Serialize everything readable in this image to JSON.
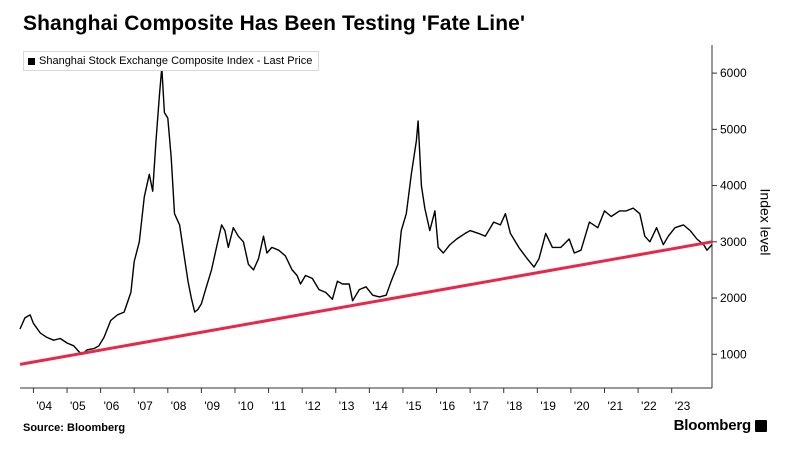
{
  "chart_data": {
    "type": "line",
    "title": "Shanghai Composite Has Been Testing 'Fate Line'",
    "ylabel": "Index level",
    "xlabel": "",
    "ylim": [
      400,
      6500
    ],
    "xlim": [
      2003.6,
      2024.2
    ],
    "y_ticks": [
      1000,
      2000,
      3000,
      4000,
      5000,
      6000
    ],
    "x_tick_labels": [
      "'04",
      "'05",
      "'06",
      "'07",
      "'08",
      "'09",
      "'10",
      "'11",
      "'12",
      "'13",
      "'14",
      "'15",
      "'16",
      "'17",
      "'18",
      "'19",
      "'20",
      "'21",
      "'22",
      "'23"
    ],
    "x_tick_years": [
      2004,
      2005,
      2006,
      2007,
      2008,
      2009,
      2010,
      2011,
      2012,
      2013,
      2014,
      2015,
      2016,
      2017,
      2018,
      2019,
      2020,
      2021,
      2022,
      2023
    ],
    "series": [
      {
        "name": "Shanghai Stock Exchange Composite Index - Last Price",
        "color": "#000000",
        "points": [
          [
            2003.6,
            1450
          ],
          [
            2003.75,
            1650
          ],
          [
            2003.9,
            1700
          ],
          [
            2004.0,
            1550
          ],
          [
            2004.2,
            1380
          ],
          [
            2004.4,
            1300
          ],
          [
            2004.6,
            1250
          ],
          [
            2004.8,
            1280
          ],
          [
            2005.0,
            1200
          ],
          [
            2005.2,
            1150
          ],
          [
            2005.35,
            1050
          ],
          [
            2005.45,
            1000
          ],
          [
            2005.6,
            1080
          ],
          [
            2005.8,
            1100
          ],
          [
            2005.95,
            1150
          ],
          [
            2006.1,
            1300
          ],
          [
            2006.3,
            1600
          ],
          [
            2006.5,
            1700
          ],
          [
            2006.7,
            1750
          ],
          [
            2006.9,
            2100
          ],
          [
            2007.0,
            2650
          ],
          [
            2007.15,
            3000
          ],
          [
            2007.3,
            3800
          ],
          [
            2007.45,
            4200
          ],
          [
            2007.55,
            3900
          ],
          [
            2007.65,
            4800
          ],
          [
            2007.75,
            5600
          ],
          [
            2007.82,
            6100
          ],
          [
            2007.9,
            5300
          ],
          [
            2008.0,
            5200
          ],
          [
            2008.1,
            4500
          ],
          [
            2008.2,
            3500
          ],
          [
            2008.35,
            3300
          ],
          [
            2008.5,
            2700
          ],
          [
            2008.6,
            2300
          ],
          [
            2008.7,
            2000
          ],
          [
            2008.8,
            1750
          ],
          [
            2008.9,
            1800
          ],
          [
            2009.0,
            1900
          ],
          [
            2009.15,
            2200
          ],
          [
            2009.3,
            2500
          ],
          [
            2009.45,
            2900
          ],
          [
            2009.6,
            3300
          ],
          [
            2009.7,
            3200
          ],
          [
            2009.8,
            2900
          ],
          [
            2009.95,
            3250
          ],
          [
            2010.1,
            3100
          ],
          [
            2010.25,
            3000
          ],
          [
            2010.4,
            2600
          ],
          [
            2010.55,
            2500
          ],
          [
            2010.7,
            2700
          ],
          [
            2010.85,
            3100
          ],
          [
            2010.95,
            2800
          ],
          [
            2011.1,
            2900
          ],
          [
            2011.3,
            2850
          ],
          [
            2011.5,
            2750
          ],
          [
            2011.7,
            2500
          ],
          [
            2011.85,
            2400
          ],
          [
            2011.95,
            2250
          ],
          [
            2012.1,
            2400
          ],
          [
            2012.3,
            2350
          ],
          [
            2012.5,
            2150
          ],
          [
            2012.7,
            2100
          ],
          [
            2012.9,
            1980
          ],
          [
            2013.05,
            2300
          ],
          [
            2013.2,
            2250
          ],
          [
            2013.4,
            2250
          ],
          [
            2013.5,
            1950
          ],
          [
            2013.7,
            2150
          ],
          [
            2013.9,
            2200
          ],
          [
            2014.1,
            2050
          ],
          [
            2014.3,
            2020
          ],
          [
            2014.5,
            2050
          ],
          [
            2014.65,
            2300
          ],
          [
            2014.85,
            2600
          ],
          [
            2014.95,
            3200
          ],
          [
            2015.1,
            3500
          ],
          [
            2015.25,
            4200
          ],
          [
            2015.4,
            4800
          ],
          [
            2015.45,
            5150
          ],
          [
            2015.55,
            4000
          ],
          [
            2015.65,
            3600
          ],
          [
            2015.8,
            3200
          ],
          [
            2015.95,
            3550
          ],
          [
            2016.05,
            2900
          ],
          [
            2016.2,
            2800
          ],
          [
            2016.4,
            2950
          ],
          [
            2016.6,
            3050
          ],
          [
            2016.85,
            3150
          ],
          [
            2017.0,
            3200
          ],
          [
            2017.25,
            3150
          ],
          [
            2017.45,
            3100
          ],
          [
            2017.7,
            3350
          ],
          [
            2017.9,
            3300
          ],
          [
            2018.05,
            3500
          ],
          [
            2018.2,
            3150
          ],
          [
            2018.45,
            2900
          ],
          [
            2018.7,
            2700
          ],
          [
            2018.9,
            2550
          ],
          [
            2019.05,
            2700
          ],
          [
            2019.25,
            3150
          ],
          [
            2019.45,
            2900
          ],
          [
            2019.7,
            2900
          ],
          [
            2019.95,
            3050
          ],
          [
            2020.1,
            2800
          ],
          [
            2020.3,
            2850
          ],
          [
            2020.55,
            3350
          ],
          [
            2020.8,
            3250
          ],
          [
            2021.0,
            3550
          ],
          [
            2021.2,
            3450
          ],
          [
            2021.45,
            3550
          ],
          [
            2021.65,
            3550
          ],
          [
            2021.85,
            3600
          ],
          [
            2022.05,
            3500
          ],
          [
            2022.2,
            3100
          ],
          [
            2022.35,
            3000
          ],
          [
            2022.55,
            3250
          ],
          [
            2022.75,
            2950
          ],
          [
            2022.9,
            3100
          ],
          [
            2023.1,
            3250
          ],
          [
            2023.35,
            3300
          ],
          [
            2023.55,
            3200
          ],
          [
            2023.75,
            3050
          ],
          [
            2023.95,
            2950
          ],
          [
            2024.05,
            2850
          ],
          [
            2024.2,
            2950
          ]
        ]
      },
      {
        "name": "Fate Line",
        "color": "#e8284a",
        "points": [
          [
            2003.6,
            820
          ],
          [
            2024.2,
            3000
          ]
        ]
      }
    ]
  },
  "legend": {
    "label": "Shanghai Stock Exchange Composite Index - Last Price"
  },
  "footer": {
    "source": "Source: Bloomberg",
    "brand": "Bloomberg"
  }
}
